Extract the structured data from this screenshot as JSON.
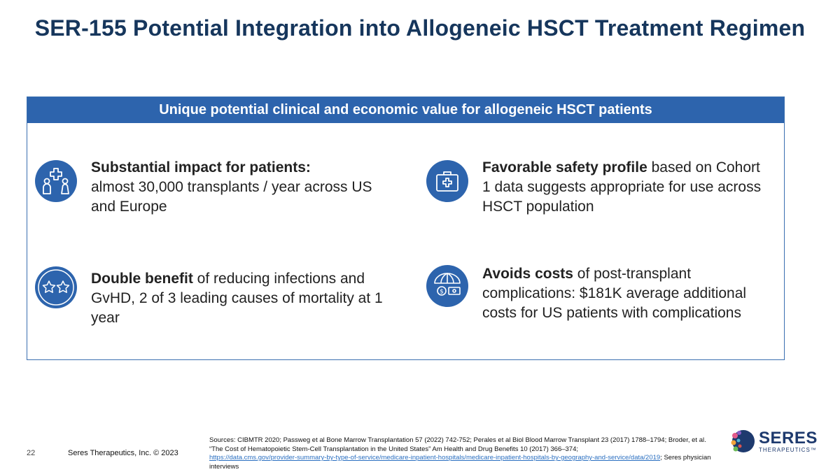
{
  "title": "SER-155 Potential Integration into Allogeneic HSCT Treatment Regimen",
  "panel": {
    "header": "Unique potential clinical and economic value for allogeneic HSCT patients",
    "items": [
      {
        "icon": "patients-medical-icon",
        "bold": "Substantial impact for patients:",
        "rest": "almost 30,000 transplants / year across US and Europe"
      },
      {
        "icon": "medical-kit-icon",
        "bold": "Favorable safety profile",
        "rest": " based on Cohort 1 data suggests appropriate for use across HSCT population"
      },
      {
        "icon": "two-stars-icon",
        "bold": "Double benefit",
        "rest": " of reducing infections and GvHD, 2 of 3 leading causes of mortality at 1 year"
      },
      {
        "icon": "umbrella-money-icon",
        "bold": "Avoids costs",
        "rest": " of post-transplant complications: $181K average additional costs for US patients with complications"
      }
    ]
  },
  "footer": {
    "page_number": "22",
    "company": "Seres Therapeutics, Inc. © 2023",
    "sources_prefix": "Sources:  CIBMTR 2020; Passweg et al Bone Marrow Transplantation 57 (2022) 742-752; Perales et al Biol Blood Marrow Transplant 23 (2017) 1788–1794; Broder, et al. “The Cost of Hematopoietic Stem-Cell Transplantation in the United States” Am Health and Drug Benefits 10 (2017) 366–374;",
    "sources_link": "https://data.cms.gov/provider-summary-by-type-of-service/medicare-inpatient-hospitals/medicare-inpatient-hospitals-by-geography-and-service/data/2019",
    "sources_suffix": "; Seres physician interviews"
  },
  "logo": {
    "main": "SERES",
    "sub": "THERAPEUTICS™"
  },
  "colors": {
    "title": "#16365c",
    "accent": "#2d64ad",
    "link": "#2a6fc1"
  }
}
